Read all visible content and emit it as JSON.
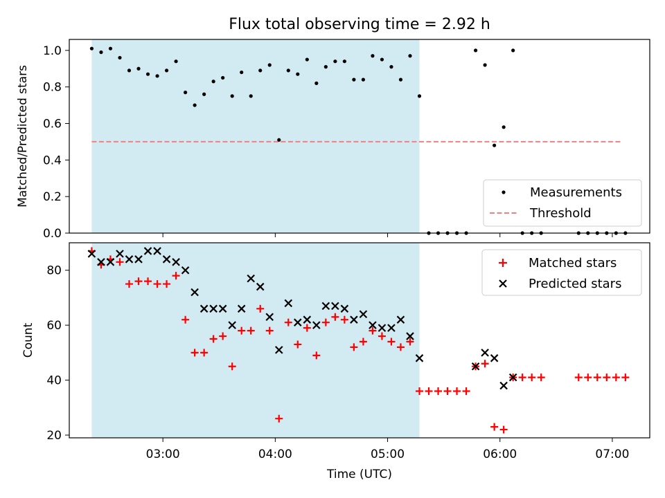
{
  "title": "Flux total observing time = 2.92 h",
  "colors": {
    "shade": "#add8e6",
    "threshold": "#f08080",
    "matched": "#ff0000",
    "predicted": "#000000",
    "measurement": "#000000"
  },
  "chart_data": [
    {
      "type": "scatter",
      "ylabel": "Matched/Predicted stars",
      "xlim": [
        "02:10",
        "07:20"
      ],
      "ylim": [
        0,
        1.06
      ],
      "yticks": [
        0.0,
        0.2,
        0.4,
        0.6,
        0.8,
        1.0
      ],
      "ytick_labels": [
        "0.0",
        "0.2",
        "0.4",
        "0.6",
        "0.8",
        "1.0"
      ],
      "grid": false,
      "legend": "lower right",
      "legend_entries": [
        "Measurements",
        "Threshold"
      ],
      "shaded_span": [
        "02:22",
        "05:17"
      ],
      "threshold": {
        "name": "Threshold",
        "y": 0.5,
        "x": [
          "02:22",
          "07:05"
        ]
      },
      "series": [
        {
          "name": "Measurements",
          "x": [
            "02:22",
            "02:27",
            "02:32",
            "02:37",
            "02:42",
            "02:47",
            "02:52",
            "02:57",
            "03:02",
            "03:07",
            "03:12",
            "03:17",
            "03:22",
            "03:27",
            "03:32",
            "03:37",
            "03:42",
            "03:47",
            "03:52",
            "03:57",
            "04:02",
            "04:07",
            "04:12",
            "04:17",
            "04:22",
            "04:27",
            "04:32",
            "04:37",
            "04:42",
            "04:47",
            "04:52",
            "04:57",
            "05:02",
            "05:07",
            "05:12",
            "05:17",
            "05:22",
            "05:27",
            "05:32",
            "05:37",
            "05:42",
            "05:47",
            "05:52",
            "05:57",
            "06:02",
            "06:07",
            "06:12",
            "06:17",
            "06:22",
            "06:27",
            "06:32",
            "06:37",
            "06:42",
            "06:47",
            "06:52",
            "06:57",
            "07:02",
            "07:07"
          ],
          "y": [
            1.01,
            0.99,
            1.01,
            0.96,
            0.89,
            0.9,
            0.87,
            0.86,
            0.89,
            0.94,
            0.77,
            0.7,
            0.76,
            0.83,
            0.85,
            0.75,
            0.88,
            0.75,
            0.89,
            0.92,
            0.51,
            0.89,
            0.87,
            0.95,
            0.82,
            0.91,
            0.94,
            0.94,
            0.84,
            0.84,
            0.97,
            0.95,
            0.91,
            0.84,
            0.97,
            0.75,
            0.0,
            0.0,
            0.0,
            0.0,
            0.0,
            1.0,
            0.92,
            0.48,
            0.58,
            1.0,
            0.0,
            0.0,
            0.0,
            0.0,
            0.0,
            0.0,
            0.0,
            0.0,
            0.0,
            0.0,
            0.0,
            0.0
          ],
          "show": [
            1,
            1,
            1,
            1,
            1,
            1,
            1,
            1,
            1,
            1,
            1,
            1,
            1,
            1,
            1,
            1,
            1,
            1,
            1,
            1,
            1,
            1,
            1,
            1,
            1,
            1,
            1,
            1,
            1,
            1,
            1,
            1,
            1,
            1,
            1,
            1,
            1,
            1,
            1,
            1,
            1,
            1,
            1,
            1,
            1,
            1,
            1,
            1,
            1,
            0,
            0,
            0,
            1,
            1,
            1,
            1,
            1,
            1
          ]
        }
      ]
    },
    {
      "type": "scatter",
      "xlabel": "Time (UTC)",
      "ylabel": "Count",
      "xlim": [
        "02:10",
        "07:20"
      ],
      "ylim": [
        19,
        90
      ],
      "xtick_labels": [
        "03:00",
        "04:00",
        "05:00",
        "06:00",
        "07:00"
      ],
      "yticks": [
        20,
        40,
        60,
        80
      ],
      "ytick_labels": [
        "20",
        "40",
        "60",
        "80"
      ],
      "grid": false,
      "legend": "upper right",
      "legend_entries": [
        "Matched stars",
        "Predicted stars"
      ],
      "shaded_span": [
        "02:22",
        "05:17"
      ],
      "series": [
        {
          "name": "Matched stars",
          "marker": "+",
          "x": [
            "02:22",
            "02:27",
            "02:32",
            "02:37",
            "02:42",
            "02:47",
            "02:52",
            "02:57",
            "03:02",
            "03:07",
            "03:12",
            "03:17",
            "03:22",
            "03:27",
            "03:32",
            "03:37",
            "03:42",
            "03:47",
            "03:52",
            "03:57",
            "04:02",
            "04:07",
            "04:12",
            "04:17",
            "04:22",
            "04:27",
            "04:32",
            "04:37",
            "04:42",
            "04:47",
            "04:52",
            "04:57",
            "05:02",
            "05:07",
            "05:12",
            "05:17",
            "05:22",
            "05:27",
            "05:32",
            "05:37",
            "05:42",
            "05:47",
            "05:52",
            "05:57",
            "06:02",
            "06:07",
            "06:12",
            "06:17",
            "06:22",
            "06:42",
            "06:47",
            "06:52",
            "06:57",
            "07:02",
            "07:07"
          ],
          "y": [
            87,
            82,
            84,
            83,
            75,
            76,
            76,
            75,
            75,
            78,
            62,
            50,
            50,
            55,
            56,
            45,
            58,
            58,
            66,
            58,
            26,
            61,
            53,
            59,
            49,
            61,
            63,
            62,
            52,
            54,
            58,
            56,
            54,
            52,
            54,
            36,
            36,
            36,
            36,
            36,
            36,
            45,
            46,
            23,
            22,
            41,
            41,
            41,
            41,
            41,
            41,
            41,
            41,
            41,
            41
          ]
        },
        {
          "name": "Predicted stars",
          "marker": "x",
          "x": [
            "02:22",
            "02:27",
            "02:32",
            "02:37",
            "02:42",
            "02:47",
            "02:52",
            "02:57",
            "03:02",
            "03:07",
            "03:12",
            "03:17",
            "03:22",
            "03:27",
            "03:32",
            "03:37",
            "03:42",
            "03:47",
            "03:52",
            "03:57",
            "04:02",
            "04:07",
            "04:12",
            "04:17",
            "04:22",
            "04:27",
            "04:32",
            "04:37",
            "04:42",
            "04:47",
            "04:52",
            "04:57",
            "05:02",
            "05:07",
            "05:12",
            "05:17",
            "05:47",
            "05:52",
            "05:57",
            "06:02",
            "06:07"
          ],
          "y": [
            86,
            83,
            83,
            86,
            84,
            84,
            87,
            87,
            84,
            83,
            80,
            72,
            66,
            66,
            66,
            60,
            66,
            77,
            74,
            63,
            51,
            68,
            61,
            62,
            60,
            67,
            67,
            66,
            62,
            64,
            60,
            59,
            59,
            62,
            56,
            48,
            45,
            50,
            48,
            38,
            41
          ]
        }
      ]
    }
  ]
}
